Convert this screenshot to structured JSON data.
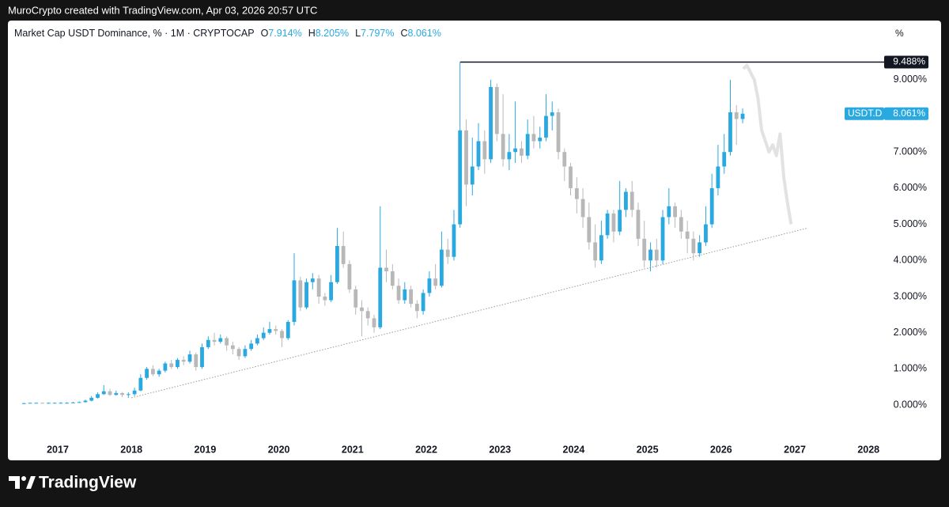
{
  "header": {
    "attribution": "MuroCrypto created with TradingView.com, Apr 03, 2026 20:57 UTC"
  },
  "chart_data": {
    "type": "candlestick",
    "title": "Market Cap USDT Dominance, % · 1M · CRYPTOCAP",
    "ohlc_legend": [
      {
        "key": "O",
        "value": "7.914%"
      },
      {
        "key": "H",
        "value": "8.205%"
      },
      {
        "key": "L",
        "value": "7.797%"
      },
      {
        "key": "C",
        "value": "8.061%"
      }
    ],
    "y_unit": "%",
    "up_color": "#2aa8e0",
    "down_color": "#b8b8b8",
    "x": [
      2016.542,
      2016.625,
      2016.708,
      2016.792,
      2016.875,
      2016.958,
      2017.042,
      2017.125,
      2017.208,
      2017.292,
      2017.375,
      2017.458,
      2017.542,
      2017.625,
      2017.708,
      2017.792,
      2017.875,
      2017.958,
      2018.042,
      2018.125,
      2018.208,
      2018.292,
      2018.375,
      2018.458,
      2018.542,
      2018.625,
      2018.708,
      2018.792,
      2018.875,
      2018.958,
      2019.042,
      2019.125,
      2019.208,
      2019.292,
      2019.375,
      2019.458,
      2019.542,
      2019.625,
      2019.708,
      2019.792,
      2019.875,
      2019.958,
      2020.042,
      2020.125,
      2020.208,
      2020.292,
      2020.375,
      2020.458,
      2020.542,
      2020.625,
      2020.708,
      2020.792,
      2020.875,
      2020.958,
      2021.042,
      2021.125,
      2021.208,
      2021.292,
      2021.375,
      2021.458,
      2021.542,
      2021.625,
      2021.708,
      2021.792,
      2021.875,
      2021.958,
      2022.042,
      2022.125,
      2022.208,
      2022.292,
      2022.375,
      2022.458,
      2022.542,
      2022.625,
      2022.708,
      2022.792,
      2022.875,
      2022.958,
      2023.042,
      2023.125,
      2023.208,
      2023.292,
      2023.375,
      2023.458,
      2023.542,
      2023.625,
      2023.708,
      2023.792,
      2023.875,
      2023.958,
      2024.042,
      2024.125,
      2024.208,
      2024.292,
      2024.375,
      2024.458,
      2024.542,
      2024.625,
      2024.708,
      2024.792,
      2024.875,
      2024.958,
      2025.042,
      2025.125,
      2025.208,
      2025.292,
      2025.375,
      2025.458,
      2025.542,
      2025.625,
      2025.708,
      2025.792,
      2025.875,
      2025.958,
      2026.042,
      2026.125,
      2026.208,
      2026.292
    ],
    "open": [
      0.05,
      0.05,
      0.06,
      0.06,
      0.05,
      0.06,
      0.06,
      0.06,
      0.06,
      0.07,
      0.08,
      0.12,
      0.2,
      0.3,
      0.38,
      0.28,
      0.33,
      0.28,
      0.3,
      0.4,
      0.75,
      1.0,
      0.85,
      0.95,
      1.15,
      1.05,
      1.25,
      1.2,
      1.4,
      1.05,
      1.6,
      1.8,
      1.75,
      1.85,
      1.65,
      1.55,
      1.35,
      1.55,
      1.7,
      1.85,
      2.0,
      2.1,
      2.05,
      1.85,
      2.3,
      3.45,
      2.7,
      3.4,
      3.5,
      3.0,
      2.9,
      3.4,
      4.4,
      3.9,
      3.2,
      2.7,
      2.6,
      2.4,
      2.15,
      3.8,
      3.7,
      3.3,
      2.9,
      3.2,
      2.8,
      2.6,
      3.1,
      3.5,
      3.3,
      4.3,
      4.1,
      5.0,
      7.6,
      6.1,
      6.6,
      7.3,
      6.8,
      8.8,
      7.5,
      6.8,
      7.0,
      7.1,
      6.9,
      7.5,
      7.3,
      7.4,
      8.0,
      8.1,
      7.0,
      6.6,
      6.0,
      5.7,
      5.2,
      4.5,
      4.0,
      4.7,
      5.3,
      4.8,
      5.4,
      5.9,
      5.4,
      4.6,
      4.0,
      4.3,
      4.0,
      5.2,
      5.5,
      5.2,
      4.8,
      4.6,
      4.2,
      4.5,
      5.0,
      6.0,
      6.6,
      7.0,
      8.1,
      7.914
    ],
    "high": [
      0.06,
      0.07,
      0.07,
      0.07,
      0.07,
      0.07,
      0.08,
      0.08,
      0.09,
      0.1,
      0.15,
      0.25,
      0.35,
      0.55,
      0.45,
      0.4,
      0.36,
      0.35,
      0.48,
      0.85,
      1.05,
      1.1,
      1.0,
      1.2,
      1.25,
      1.3,
      1.35,
      1.5,
      1.45,
      1.7,
      1.9,
      2.0,
      1.95,
      1.9,
      1.75,
      1.6,
      1.65,
      1.8,
      1.95,
      2.15,
      2.3,
      2.2,
      2.1,
      2.35,
      4.2,
      3.55,
      3.5,
      3.65,
      3.6,
      3.1,
      3.6,
      4.9,
      4.8,
      4.0,
      3.3,
      2.9,
      2.7,
      2.5,
      5.5,
      4.3,
      3.9,
      3.5,
      3.4,
      3.3,
      2.9,
      3.2,
      3.7,
      3.9,
      4.8,
      4.6,
      5.4,
      9.488,
      7.9,
      7.4,
      7.8,
      7.6,
      9.0,
      8.9,
      8.6,
      7.5,
      8.4,
      7.3,
      7.9,
      8.0,
      7.7,
      8.6,
      8.4,
      8.2,
      7.1,
      6.7,
      6.3,
      6.0,
      5.6,
      5.0,
      5.1,
      5.4,
      5.4,
      6.2,
      6.0,
      6.2,
      5.6,
      5.1,
      4.5,
      4.6,
      5.4,
      6.0,
      5.6,
      5.4,
      5.1,
      4.8,
      4.7,
      5.5,
      6.4,
      7.2,
      7.5,
      9.0,
      8.3,
      8.205
    ],
    "low": [
      0.04,
      0.05,
      0.05,
      0.05,
      0.05,
      0.05,
      0.05,
      0.05,
      0.06,
      0.06,
      0.07,
      0.1,
      0.18,
      0.28,
      0.25,
      0.26,
      0.22,
      0.2,
      0.25,
      0.38,
      0.7,
      0.8,
      0.78,
      0.9,
      1.0,
      1.0,
      1.1,
      1.15,
      0.95,
      1.0,
      1.55,
      1.65,
      1.7,
      1.5,
      1.4,
      1.25,
      1.3,
      1.5,
      1.65,
      1.8,
      1.95,
      1.95,
      1.6,
      1.8,
      2.2,
      2.6,
      2.65,
      3.2,
      2.8,
      2.75,
      2.85,
      3.35,
      3.8,
      3.1,
      2.5,
      1.9,
      2.2,
      2.0,
      2.1,
      3.4,
      3.2,
      2.8,
      2.8,
      2.7,
      2.4,
      2.5,
      3.0,
      3.2,
      3.25,
      3.9,
      4.0,
      4.9,
      5.5,
      5.8,
      6.5,
      6.4,
      6.7,
      7.3,
      6.6,
      6.5,
      6.7,
      6.7,
      6.8,
      7.1,
      7.1,
      7.3,
      7.6,
      6.8,
      6.2,
      5.8,
      5.3,
      4.9,
      4.3,
      3.8,
      3.9,
      4.6,
      4.5,
      4.7,
      5.2,
      5.2,
      4.4,
      3.8,
      3.7,
      3.8,
      3.9,
      5.0,
      4.9,
      4.6,
      4.2,
      4.0,
      4.1,
      4.4,
      4.9,
      5.8,
      6.4,
      6.9,
      7.2,
      7.797
    ],
    "close": [
      0.05,
      0.06,
      0.06,
      0.05,
      0.06,
      0.06,
      0.06,
      0.06,
      0.07,
      0.08,
      0.12,
      0.2,
      0.3,
      0.38,
      0.28,
      0.33,
      0.28,
      0.3,
      0.4,
      0.75,
      1.0,
      0.85,
      0.95,
      1.15,
      1.05,
      1.25,
      1.2,
      1.4,
      1.05,
      1.6,
      1.8,
      1.75,
      1.85,
      1.65,
      1.55,
      1.35,
      1.55,
      1.7,
      1.85,
      2.0,
      2.1,
      2.05,
      1.85,
      2.3,
      3.45,
      2.7,
      3.4,
      3.5,
      3.0,
      2.9,
      3.4,
      4.4,
      3.9,
      3.2,
      2.7,
      2.6,
      2.4,
      2.15,
      3.8,
      3.7,
      3.3,
      2.9,
      3.2,
      2.8,
      2.6,
      3.1,
      3.5,
      3.3,
      4.3,
      4.1,
      5.0,
      7.6,
      6.1,
      6.6,
      7.3,
      6.8,
      8.8,
      7.5,
      6.8,
      7.0,
      7.1,
      6.9,
      7.5,
      7.3,
      7.4,
      8.0,
      8.1,
      7.0,
      6.6,
      6.0,
      5.7,
      5.2,
      4.5,
      4.0,
      4.7,
      5.3,
      4.8,
      5.4,
      5.9,
      5.4,
      4.6,
      4.0,
      4.3,
      4.0,
      5.2,
      5.5,
      5.2,
      4.8,
      4.6,
      4.2,
      4.5,
      5.0,
      6.0,
      6.6,
      7.0,
      8.1,
      7.914,
      8.061
    ],
    "high_line": {
      "index": 71,
      "label": "9.488%",
      "color": "#131722"
    },
    "last_price": {
      "index": 117,
      "symbol": "USDT.D",
      "label": "8.061%"
    },
    "trendline": {
      "x": [
        2018.0,
        2027.18
      ],
      "values": [
        0.2,
        4.9
      ],
      "color": "#9a9a9a"
    },
    "projection": {
      "color": "#e2e2e2",
      "x": [
        2026.3,
        2026.35,
        2026.4,
        2026.45,
        2026.5,
        2026.55,
        2026.6,
        2026.65,
        2026.7,
        2026.75,
        2026.8,
        2026.85,
        2026.9,
        2026.95
      ],
      "values": [
        9.3,
        9.4,
        9.2,
        9.0,
        8.5,
        7.6,
        7.3,
        7.0,
        7.2,
        6.9,
        7.5,
        6.3,
        5.6,
        5.0
      ]
    },
    "xlim": [
      2016.324,
      2028.212
    ],
    "xticks": [
      2017,
      2018,
      2019,
      2020,
      2021,
      2022,
      2023,
      2024,
      2025,
      2026,
      2027,
      2028
    ],
    "ylim": [
      -0.94,
      10.66
    ],
    "yticks": [
      {
        "value": 0,
        "label": "0.000%"
      },
      {
        "value": 1,
        "label": "1.000%"
      },
      {
        "value": 2,
        "label": "2.000%"
      },
      {
        "value": 3,
        "label": "3.000%"
      },
      {
        "value": 4,
        "label": "4.000%"
      },
      {
        "value": 5,
        "label": "5.000%"
      },
      {
        "value": 6,
        "label": "6.000%"
      },
      {
        "value": 7,
        "label": "7.000%"
      },
      {
        "value": 8,
        "label": "8.000%"
      },
      {
        "value": 9,
        "label": "9.000%"
      }
    ],
    "grid": false
  },
  "footer": {
    "brand": "TradingView"
  }
}
